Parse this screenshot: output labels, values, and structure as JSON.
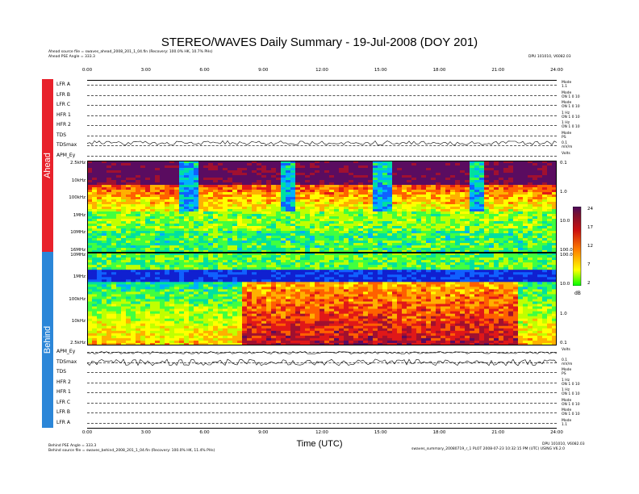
{
  "title": "STEREO/WAVES Daily Summary - 19-Jul-2008 (DOY 201)",
  "ahead_header": {
    "source": "Ahead source file = swaves_ahead_2008_201_1_04.fin (Recovery: 100.0% HK, 10.7% PHs)",
    "pse_angle": "Ahead PSE Angle = 333.3",
    "right": "DPU 101010, V6082.03"
  },
  "behind_footer": {
    "pse_angle": "Behind PSE Angle = 333.3",
    "source": "Behind source file = swaves_behind_2008_201_1_04.fin (Recovery: 100.0% HK, 11.4% PHs)",
    "right1": "DPU 101010, V6082.03",
    "right2": "swaves_summary_20080719_r_1 PLOT 2008-07-23 10:32:15 PM (UTC) USING V6.2.0"
  },
  "sidebar": {
    "ahead": "Ahead",
    "behind": "Behind"
  },
  "time_axis": {
    "ticks": [
      "0:00",
      "3:00",
      "6:00",
      "9:00",
      "12:00",
      "15:00",
      "18:00",
      "21:00",
      "24:00"
    ],
    "xlabel": "Time (UTC)"
  },
  "ahead_rows": [
    {
      "label": "LFR A",
      "right": [
        "Mode",
        "1.1"
      ]
    },
    {
      "label": "LFR B",
      "right": [
        "Mode",
        "ON 1 0 10"
      ]
    },
    {
      "label": "LFR C",
      "right": [
        "Mode",
        "ON 1 0 10"
      ]
    },
    {
      "label": "HFR 1",
      "right": [
        "1 Hz",
        "ON 1 0 10"
      ]
    },
    {
      "label": "HFR 2",
      "right": [
        "1 Hz",
        "ON 1 0 10"
      ]
    },
    {
      "label": "TDS",
      "right": [
        "Mode",
        "PS"
      ]
    },
    {
      "label": "TDSmax",
      "right": [
        "0.1",
        "mV/m"
      ]
    },
    {
      "label": "APM_Ey",
      "right": [
        "Volts"
      ]
    }
  ],
  "behind_rows": [
    {
      "label": "APM_Ey",
      "right": [
        "Volts"
      ]
    },
    {
      "label": "TDSmax",
      "right": [
        "0.1",
        "mV/m"
      ]
    },
    {
      "label": "TDS",
      "right": [
        "Mode",
        "PS"
      ]
    },
    {
      "label": "HFR 2",
      "right": [
        "1 Hz",
        "ON 1 0 10"
      ]
    },
    {
      "label": "HFR 1",
      "right": [
        "1 Hz",
        "ON 1 0 10"
      ]
    },
    {
      "label": "LFR C",
      "right": [
        "Mode",
        "ON 1 0 10"
      ]
    },
    {
      "label": "LFR B",
      "right": [
        "Mode",
        "ON 1 0 10"
      ]
    },
    {
      "label": "LFR A",
      "right": [
        "Mode",
        "1.1"
      ]
    }
  ],
  "ahead_freq_labels": [
    "2.5kHz",
    "10kHz",
    "100kHz",
    "1MHz",
    "10MHz",
    "16MHz"
  ],
  "behind_freq_labels": [
    "10MHz",
    "1MHz",
    "100kHz",
    "10kHz",
    "2.5kHz"
  ],
  "ahead_right_ticks": [
    "0.1",
    "1.0",
    "10.0",
    "100.0"
  ],
  "behind_right_ticks": [
    "100.0",
    "10.0",
    "1.0",
    "0.1"
  ],
  "colorbar": {
    "ticks": [
      "24",
      "17",
      "12",
      "7",
      "2"
    ],
    "unit": "dB"
  },
  "chart_data": {
    "type": "heatmap",
    "title": "STEREO/WAVES Daily Summary - 19-Jul-2008 (DOY 201)",
    "xlabel": "Time (UTC)",
    "xlim": [
      0,
      24
    ],
    "colorbar_range_dB": [
      2,
      24
    ],
    "ahead_type3_burst_times_h": [
      5.1,
      10.1,
      15.0,
      19.8
    ],
    "behind_enhancement_start_h": 7.8,
    "behind_enhancement_end_h": 22.0
  }
}
